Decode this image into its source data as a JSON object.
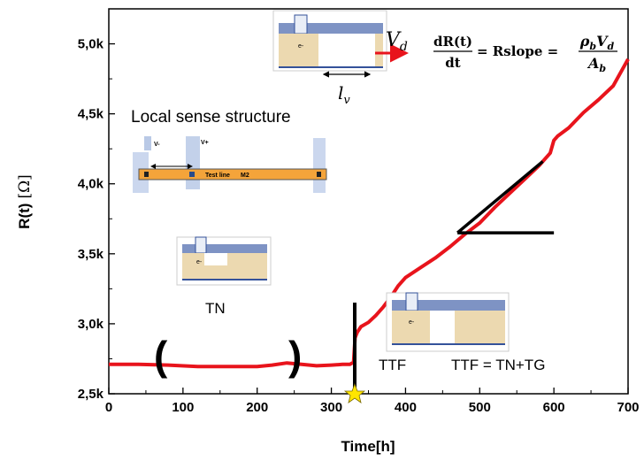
{
  "chart_data": {
    "type": "line",
    "xlabel": "Time[h]",
    "ylabel": "R(t)",
    "ylabel_unit": "[Ω]",
    "xlim": [
      0,
      700
    ],
    "ylim": [
      2500,
      5250
    ],
    "xticks": [
      0,
      100,
      200,
      300,
      400,
      500,
      600,
      700
    ],
    "xtick_labels": [
      "0",
      "100",
      "200",
      "300",
      "400",
      "500",
      "600",
      "700"
    ],
    "yticks": [
      2500,
      3000,
      3500,
      4000,
      4500,
      5000
    ],
    "ytick_labels": [
      "2,5k",
      "3,0k",
      "3,5k",
      "4,0k",
      "4,5k",
      "5,0k"
    ],
    "series": [
      {
        "color": "#e8141c",
        "x": [
          0,
          40,
          80,
          120,
          160,
          200,
          220,
          240,
          260,
          280,
          300,
          315,
          325,
          330,
          332,
          335,
          340,
          350,
          360,
          370,
          380,
          390,
          400,
          420,
          440,
          460,
          480,
          500,
          520,
          540,
          560,
          580,
          595,
          600,
          605,
          620,
          640,
          660,
          680,
          700
        ],
        "y": [
          2710,
          2710,
          2705,
          2695,
          2695,
          2695,
          2705,
          2720,
          2710,
          2700,
          2705,
          2710,
          2710,
          2725,
          2900,
          2940,
          2980,
          3010,
          3060,
          3120,
          3190,
          3270,
          3330,
          3400,
          3470,
          3550,
          3640,
          3720,
          3830,
          3930,
          4030,
          4130,
          4220,
          4310,
          4340,
          4400,
          4510,
          4600,
          4700,
          4890
        ]
      }
    ],
    "annotations": {
      "local_sense_label": "Local sense structure",
      "v_minus": "V-",
      "v_plus": "V+",
      "test_line_label": "Test line",
      "metal_label": "M2",
      "tn_label": "TN",
      "ttf_label": "TTF",
      "ttf_eq": "TTF = TN+TG",
      "vd_label": "V",
      "vd_sub": "d",
      "lv_label": "l",
      "lv_sub": "v",
      "electron_label": "e-",
      "eq_num": "dR(t)",
      "eq_den": "dt",
      "eq_mid": "= Rslope =",
      "eq_rhs_num_rho": "ρ",
      "eq_rhs_num_b": "b",
      "eq_rhs_num_v": "V",
      "eq_rhs_num_d": "d",
      "eq_rhs_den_a": "A",
      "eq_rhs_den_b": "b"
    },
    "ttf_time": 330,
    "tn_bracket_left": 65,
    "tn_bracket_right": 250,
    "slope_line": {
      "x": [
        470,
        585
      ],
      "y": [
        3650,
        4160
      ]
    },
    "horizontal_line": {
      "x": [
        470,
        600
      ],
      "y": [
        3650,
        3650
      ]
    },
    "legend": "none",
    "grid": false
  }
}
